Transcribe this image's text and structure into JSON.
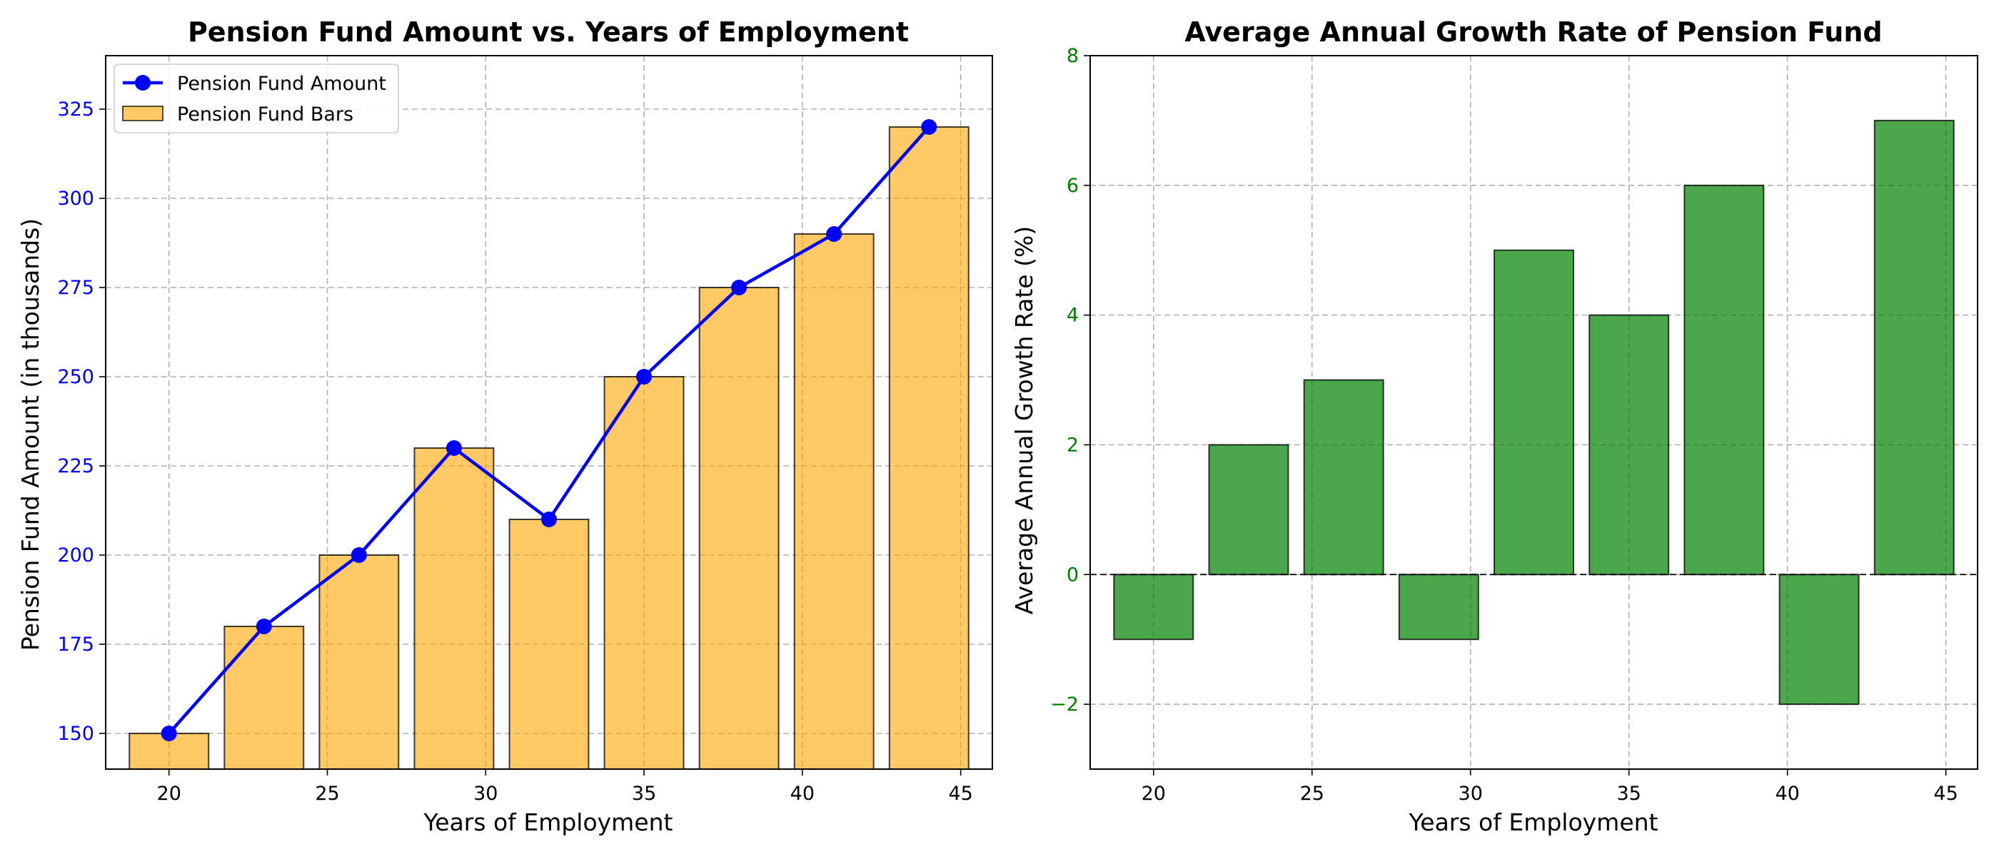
{
  "charts": [
    {
      "type": "bar+line",
      "title": "Pension Fund Amount vs. Years of Employment",
      "xlabel": "Years of Employment",
      "ylabel": "Pension Fund Amount (in thousands)",
      "ylabel_color": "#0000ff",
      "ytick_color": "#0000ff",
      "x": [
        20,
        23,
        26,
        29,
        32,
        35,
        38,
        41,
        44
      ],
      "series": [
        {
          "name": "Pension Fund Amount",
          "kind": "line",
          "color": "#0000ff",
          "marker": "circle",
          "values": [
            150,
            180,
            200,
            230,
            210,
            250,
            275,
            290,
            320
          ]
        },
        {
          "name": "Pension Fund Bars",
          "kind": "bar",
          "color": "#ffa500",
          "opacity": 0.6,
          "edgecolor": "#000000",
          "values": [
            150,
            180,
            200,
            230,
            210,
            250,
            275,
            290,
            320
          ]
        }
      ],
      "xlim": [
        18,
        46
      ],
      "ylim": [
        140,
        340
      ],
      "xticks": [
        20,
        25,
        30,
        35,
        40,
        45
      ],
      "xtick_labels": [
        "20",
        "25",
        "30",
        "35",
        "40",
        "45"
      ],
      "yticks": [
        150,
        175,
        200,
        225,
        250,
        275,
        300,
        325
      ],
      "ytick_labels": [
        "150",
        "175",
        "200",
        "225",
        "250",
        "275",
        "300",
        "325"
      ],
      "grid": true,
      "legend": {
        "position": "upper-left",
        "entries": [
          "Pension Fund Amount",
          "Pension Fund Bars"
        ]
      }
    },
    {
      "type": "bar",
      "title": "Average Annual Growth Rate of Pension Fund",
      "xlabel": "Years of Employment",
      "ylabel": "Average Annual Growth Rate (%)",
      "ylabel_color": "#008000",
      "ytick_color": "#008000",
      "x": [
        20,
        23,
        26,
        29,
        32,
        35,
        38,
        41,
        44
      ],
      "series": [
        {
          "kind": "bar",
          "color": "#008000",
          "opacity": 0.7,
          "edgecolor": "#000000",
          "values": [
            -1,
            2,
            3,
            -1,
            5,
            4,
            6,
            -2,
            7
          ]
        }
      ],
      "xlim": [
        18,
        46
      ],
      "ylim": [
        -3,
        8
      ],
      "xticks": [
        20,
        25,
        30,
        35,
        40,
        45
      ],
      "xtick_labels": [
        "20",
        "25",
        "30",
        "35",
        "40",
        "45"
      ],
      "yticks": [
        -2,
        0,
        2,
        4,
        6,
        8
      ],
      "ytick_labels": [
        "−2",
        "0",
        "2",
        "4",
        "6",
        "8"
      ],
      "grid": true,
      "zero_line": true
    }
  ]
}
